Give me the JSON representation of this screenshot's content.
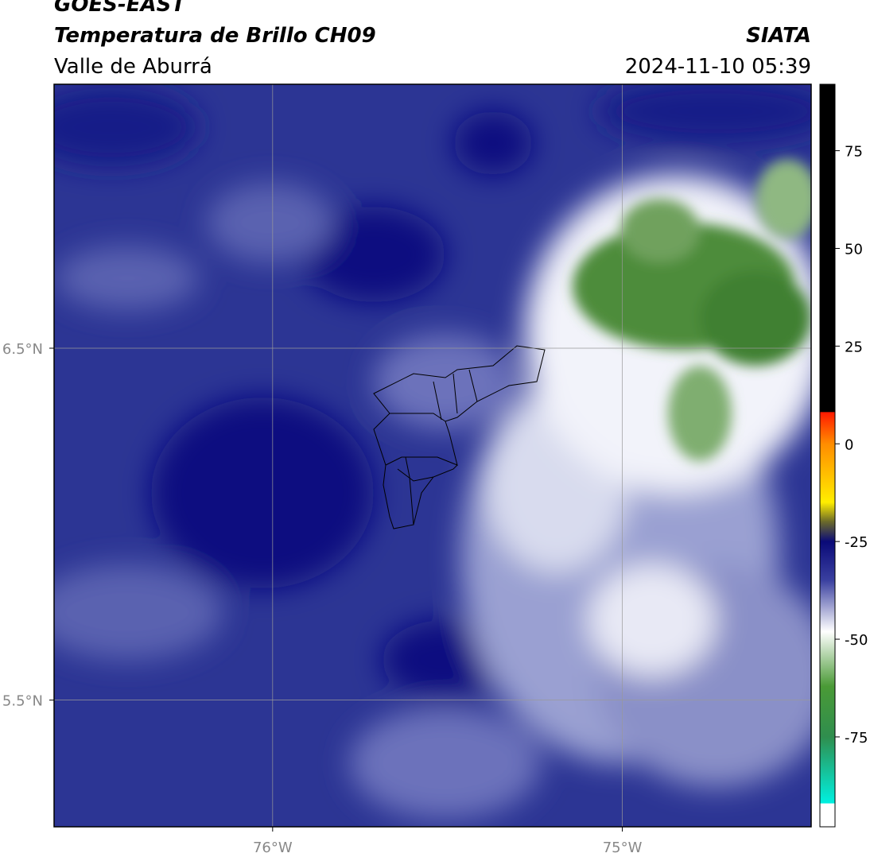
{
  "header": {
    "title": "GOES-EAST",
    "subtitle": "Temperatura de Brillo CH09",
    "region": "Valle de Aburrá",
    "source": "SIATA",
    "timestamp": "2024-11-10 05:39"
  },
  "map": {
    "xlim": [
      -76.625,
      -74.46
    ],
    "ylim": [
      5.14,
      7.25
    ],
    "xticks": [
      {
        "value": -76,
        "label": "76°W"
      },
      {
        "value": -75,
        "label": "75°W"
      }
    ],
    "yticks": [
      {
        "value": 6.5,
        "label": "6.5°N"
      },
      {
        "value": 5.5,
        "label": "5.5°N"
      }
    ],
    "grid": true
  },
  "colorbar": {
    "lim": [
      -98,
      92
    ],
    "ticks": [
      -75,
      -50,
      -25,
      0,
      25,
      50,
      75
    ]
  }
}
